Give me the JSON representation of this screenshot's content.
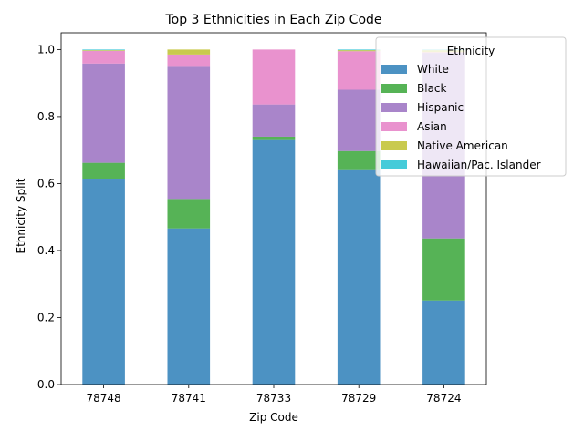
{
  "chart_data": {
    "type": "bar",
    "stacked": true,
    "title": "Top 3 Ethnicities in Each Zip Code",
    "xlabel": "Zip Code",
    "ylabel": "Ethnicity Split",
    "ylim": [
      0,
      1.05
    ],
    "yticks": [
      "0.0",
      "0.2",
      "0.4",
      "0.6",
      "0.8",
      "1.0"
    ],
    "categories": [
      "78748",
      "78741",
      "78733",
      "78729",
      "78724"
    ],
    "legend": {
      "title": "Ethnicity",
      "placement": "upper-right"
    },
    "grid": false,
    "series": [
      {
        "name": "White",
        "color": "#1f77b4",
        "values": [
          0.612,
          0.466,
          0.73,
          0.64,
          0.251
        ]
      },
      {
        "name": "Black",
        "color": "#2ca02c",
        "values": [
          0.05,
          0.088,
          0.01,
          0.057,
          0.185
        ]
      },
      {
        "name": "Hispanic",
        "color": "#9467bd",
        "values": [
          0.296,
          0.397,
          0.096,
          0.183,
          0.554
        ]
      },
      {
        "name": "Asian",
        "color": "#e377c2",
        "values": [
          0.038,
          0.034,
          0.164,
          0.115,
          0.002
        ]
      },
      {
        "name": "Native American",
        "color": "#bcbd22",
        "values": [
          0.002,
          0.015,
          0.0,
          0.003,
          0.006
        ]
      },
      {
        "name": "Hawaiian/Pac. Islander",
        "color": "#17becf",
        "values": [
          0.002,
          0.0,
          0.0,
          0.002,
          0.002
        ]
      }
    ]
  }
}
